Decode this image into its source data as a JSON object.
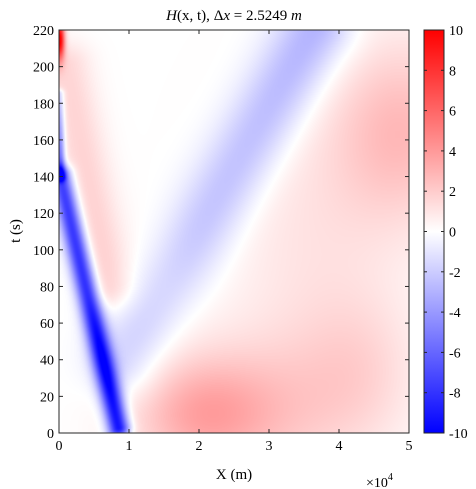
{
  "chart_data": {
    "type": "heatmap",
    "title": "H(x,t), Δx = 2.5249 m",
    "title_parts": {
      "func": "H",
      "args": "(x, t), ",
      "delta": "Δ",
      "var": "x",
      "eq": " = 2.5249 ",
      "unit": "m"
    },
    "xlabel": "X (m)",
    "ylabel": "t (s)",
    "x_exponent": "×10",
    "x_exponent_power": "4",
    "xlim": [
      0,
      50000
    ],
    "ylim": [
      0,
      220
    ],
    "x_ticks": [
      {
        "value": 0,
        "label": "0"
      },
      {
        "value": 10000,
        "label": "1"
      },
      {
        "value": 20000,
        "label": "2"
      },
      {
        "value": 30000,
        "label": "3"
      },
      {
        "value": 40000,
        "label": "4"
      },
      {
        "value": 50000,
        "label": "5"
      }
    ],
    "y_ticks": [
      {
        "value": 0,
        "label": "0"
      },
      {
        "value": 20,
        "label": "20"
      },
      {
        "value": 40,
        "label": "40"
      },
      {
        "value": 60,
        "label": "60"
      },
      {
        "value": 80,
        "label": "80"
      },
      {
        "value": 100,
        "label": "100"
      },
      {
        "value": 120,
        "label": "120"
      },
      {
        "value": 140,
        "label": "140"
      },
      {
        "value": 160,
        "label": "160"
      },
      {
        "value": 180,
        "label": "180"
      },
      {
        "value": 200,
        "label": "200"
      },
      {
        "value": 220,
        "label": "220"
      }
    ],
    "colorbar": {
      "colormap": "blue-white-red",
      "low_color": "#0000ff",
      "mid_color": "#ffffff",
      "high_color": "#ff0000",
      "range": [
        -10,
        10
      ],
      "ticks": [
        {
          "value": 10,
          "label": "10"
        },
        {
          "value": 8,
          "label": "8"
        },
        {
          "value": 6,
          "label": "6"
        },
        {
          "value": 4,
          "label": "4"
        },
        {
          "value": 2,
          "label": "2"
        },
        {
          "value": 0,
          "label": "0"
        },
        {
          "value": -2,
          "label": "-2"
        },
        {
          "value": -4,
          "label": "-4"
        },
        {
          "value": -6,
          "label": "-6"
        },
        {
          "value": -8,
          "label": "-8"
        },
        {
          "value": -10,
          "label": "-10"
        }
      ]
    },
    "features": [
      {
        "kind": "blob",
        "x": 100,
        "t": 215,
        "sx": 500,
        "st": 8,
        "amp": 10
      },
      {
        "kind": "ridge",
        "x0": 8500,
        "t0": 3,
        "x1": 200,
        "t1": 140,
        "width": 1100,
        "amp_start": -10,
        "amp_end": -8
      },
      {
        "kind": "ridge",
        "x0": 200,
        "t0": 140,
        "x1": 0,
        "t1": 185,
        "width": 500,
        "amp_start": -7,
        "amp_end": -3
      },
      {
        "kind": "ridge",
        "x0": 9500,
        "t0": 40,
        "x1": 36500,
        "t1": 220,
        "width": 3600,
        "amp_start": -2,
        "amp_end": -3.2
      },
      {
        "kind": "ridge",
        "x0": 1000,
        "t0": 200,
        "x1": 7000,
        "t1": 80,
        "width": 2500,
        "amp_start": 1.6,
        "amp_end": 1.8
      },
      {
        "kind": "blob",
        "x": 20000,
        "t": 10,
        "sx": 7000,
        "st": 22,
        "amp": 3
      },
      {
        "kind": "blob",
        "x": 31000,
        "t": 12,
        "sx": 9000,
        "st": 30,
        "amp": 1.6
      },
      {
        "kind": "blob",
        "x": 43000,
        "t": 35,
        "sx": 6000,
        "st": 30,
        "amp": 1.2
      },
      {
        "kind": "blob",
        "x": 49000,
        "t": 165,
        "sx": 7000,
        "st": 35,
        "amp": 2.6
      },
      {
        "kind": "blob",
        "x": 36000,
        "t": 105,
        "sx": 9000,
        "st": 55,
        "amp": 1.0
      },
      {
        "kind": "blob",
        "x": 15000,
        "t": 80,
        "sx": 4000,
        "st": 25,
        "amp": 0.6
      }
    ]
  }
}
